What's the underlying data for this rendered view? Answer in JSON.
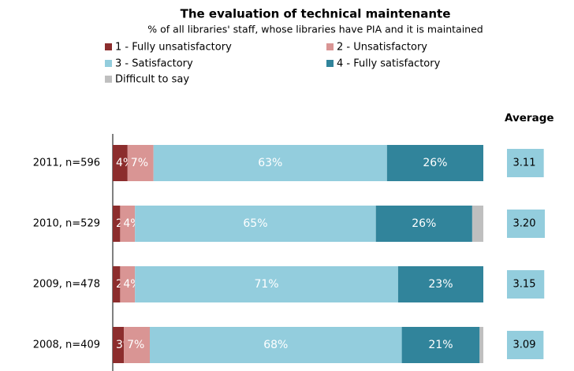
{
  "chart_data": {
    "type": "stacked-bar-horizontal",
    "title": "The evaluation of technical maintenante",
    "subtitle": "% of all libraries' staff, whose libraries have PIA and it is maintained",
    "categories": [
      "2011, n=596",
      "2010, n=529",
      "2009, n=478",
      "2008, n=409"
    ],
    "xlim": [
      0,
      100
    ],
    "series": [
      {
        "name": "1 - Fully unsatisfactory",
        "color": "#8c2d2d",
        "values": [
          4,
          2,
          2,
          3
        ],
        "value_labels": [
          "4%",
          "2%",
          "2%",
          "3%"
        ]
      },
      {
        "name": "2 - Unsatisfactory",
        "color": "#d99594",
        "values": [
          7,
          4,
          4,
          7
        ],
        "value_labels": [
          "7%",
          "4%",
          "4%",
          "7%"
        ]
      },
      {
        "name": "3 - Satisfactory",
        "color": "#93cddd",
        "values": [
          63,
          65,
          71,
          68
        ],
        "value_labels": [
          "63%",
          "65%",
          "71%",
          "68%"
        ]
      },
      {
        "name": "4 - Fully satisfactory",
        "color": "#31849b",
        "values": [
          26,
          26,
          23,
          21
        ],
        "value_labels": [
          "26%",
          "26%",
          "23%",
          "21%"
        ]
      },
      {
        "name": "Difficult to say",
        "color": "#bfbfbf",
        "values": [
          0,
          3,
          0,
          1
        ]
      }
    ],
    "averages": {
      "title": "Average",
      "color": "#93cddd",
      "values": [
        3.11,
        3.2,
        3.15,
        3.09
      ],
      "value_labels": [
        "3.11",
        "3.20",
        "3.15",
        "3.09"
      ]
    }
  }
}
